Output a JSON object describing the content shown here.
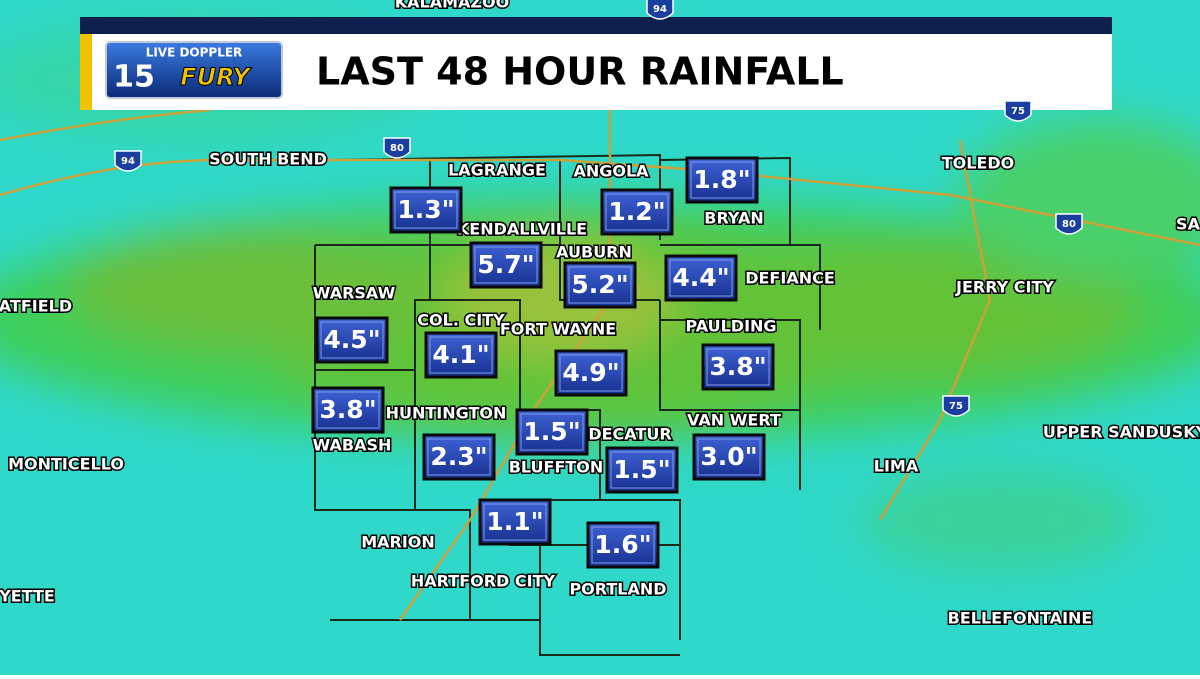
{
  "header": {
    "logo_top": "LIVE DOPPLER",
    "logo_number": "15",
    "logo_word": "FURY",
    "title": "LAST 48 HOUR RAINFALL"
  },
  "cities": [
    "KALAMAZOO",
    "SOUTH BEND",
    "LAGRANGE",
    "ANGOLA",
    "TOLEDO",
    "BRYAN",
    "KENDALLVILLE",
    "AUBURN",
    "DEFIANCE",
    "JERRY CITY",
    "EATFIELD",
    "WARSAW",
    "COL. CITY",
    "FORT WAYNE",
    "PAULDING",
    "HUNTINGTON",
    "WABASH",
    "VAN WERT",
    "DECATUR",
    "BLUFFTON",
    "MONTICELLO",
    "LIMA",
    "UPPER SANDUSKY",
    "MARION",
    "HARTFORD CITY",
    "PORTLAND",
    "BELLEFONTAINE",
    "YETTE",
    "SA"
  ],
  "rainfall": [
    "1.3\"",
    "1.2\"",
    "1.8\"",
    "5.7\"",
    "5.2\"",
    "4.4\"",
    "4.5\"",
    "4.1\"",
    "4.9\"",
    "3.8\"",
    "3.8\"",
    "1.5\"",
    "2.3\"",
    "1.5\"",
    "3.0\"",
    "1.1\"",
    "1.6\""
  ],
  "highways": [
    "94",
    "94",
    "80",
    "80",
    "75",
    "75"
  ]
}
